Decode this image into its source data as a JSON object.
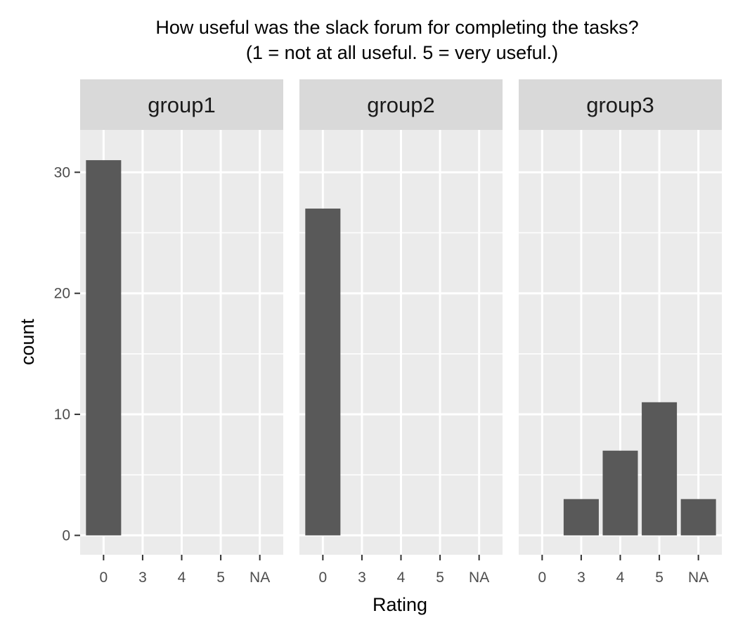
{
  "chart_data": {
    "type": "bar",
    "title": "How useful was the slack forum for completing the tasks?",
    "subtitle": "(1 = not at all useful. 5 = very useful.)",
    "xlabel": "Rating",
    "ylabel": "count",
    "categories": [
      "0",
      "3",
      "4",
      "5",
      "NA"
    ],
    "yticks": [
      0,
      10,
      20,
      30
    ],
    "ylim": [
      -1.6,
      33.5
    ],
    "grid": true,
    "colors": {
      "panel": "#EBEBEB",
      "strip": "#D9D9D9",
      "bar": "#595959",
      "grid": "#FFFFFF",
      "tick": "#333333"
    },
    "facets": [
      {
        "name": "group1",
        "values": [
          31,
          0,
          0,
          0,
          0
        ]
      },
      {
        "name": "group2",
        "values": [
          27,
          0,
          0,
          0,
          0
        ]
      },
      {
        "name": "group3",
        "values": [
          0,
          3,
          7,
          11,
          3
        ]
      }
    ]
  }
}
